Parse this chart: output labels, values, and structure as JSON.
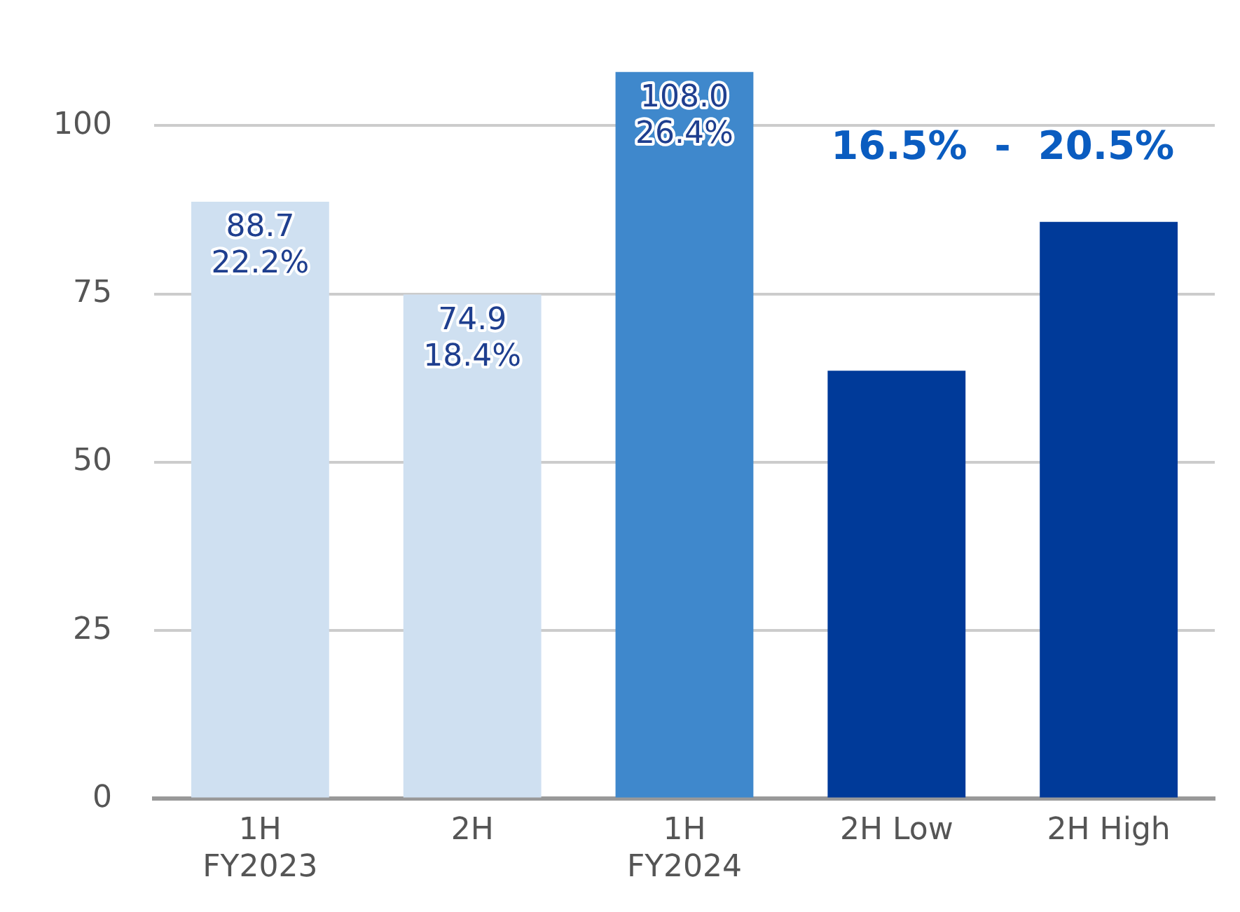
{
  "chart_data": {
    "type": "bar",
    "categories": [
      "1H\nFY2023",
      "2H",
      "1H\nFY2024",
      "2H Low",
      "2H High"
    ],
    "values": [
      88.7,
      74.9,
      108.0,
      63.6,
      85.7
    ],
    "colors": [
      "#cfe0f1",
      "#cfe0f1",
      "#3f88cc",
      "#003a99",
      "#003a99"
    ],
    "value_labels": [
      "88.7\n22.2%",
      "74.9\n18.4%",
      "108.0\n26.4%",
      null,
      null
    ],
    "annotations": [
      "16.5%  -  20.5%"
    ],
    "ylim": [
      0,
      108
    ],
    "yticks": [
      0,
      25,
      50,
      75,
      100
    ],
    "grid": "y",
    "legend": false
  }
}
